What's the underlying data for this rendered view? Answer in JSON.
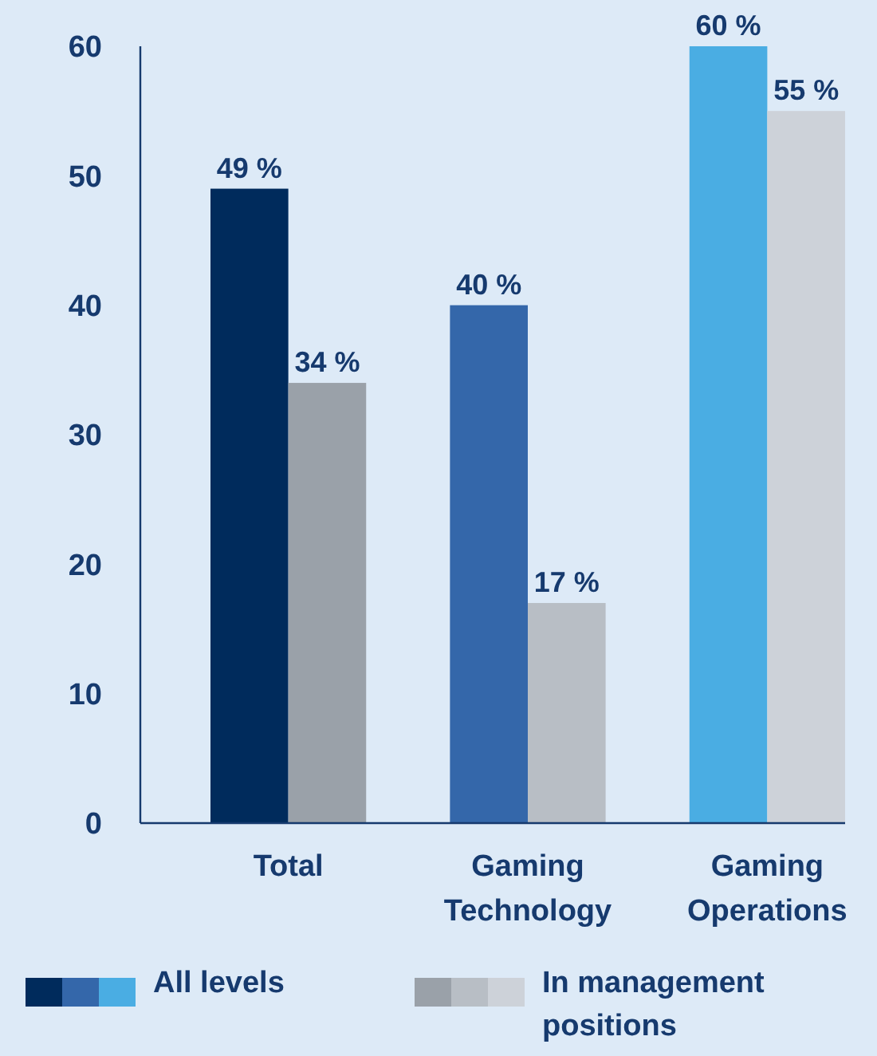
{
  "chart_data": {
    "type": "bar",
    "categories": [
      "Total",
      "Gaming Technology",
      "Gaming Operations"
    ],
    "series": [
      {
        "name": "All levels",
        "colors": [
          "#002b5c",
          "#3467aa",
          "#4aade3"
        ],
        "values": [
          49,
          40,
          60
        ],
        "value_labels": [
          "49 %",
          "40 %",
          "60 %"
        ]
      },
      {
        "name": "In management positions",
        "colors": [
          "#9aa1a9",
          "#b8bec5",
          "#cdd2d9"
        ],
        "values": [
          34,
          17,
          55
        ],
        "value_labels": [
          "34 %",
          "17 %",
          "55 %"
        ]
      }
    ],
    "ylim": [
      0,
      60
    ],
    "yticks": [
      0,
      10,
      20,
      30,
      40,
      50,
      60
    ],
    "grid": false,
    "legend": "bottom"
  }
}
